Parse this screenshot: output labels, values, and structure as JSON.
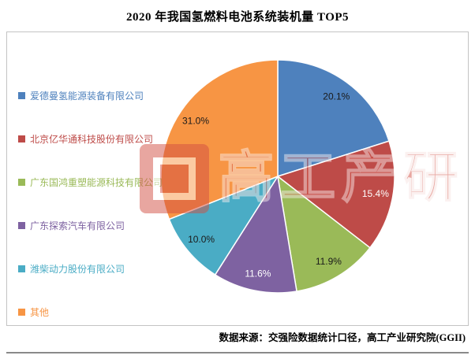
{
  "title": "2020 年我国氢燃料电池系统装机量 TOP5",
  "source_note": "数据来源：交强险数据统计口径，高工产业研究院(GGII)",
  "watermark": {
    "text": "高工产研"
  },
  "chart_data": {
    "type": "pie",
    "title": "2020 年我国氢燃料电池系统装机量 TOP5",
    "unit": "%",
    "categories": [
      "爱德曼氢能源装备有限公司",
      "北京亿华通科技股份有限公司",
      "广东国鸿重塑能源科技有限公司",
      "广东探索汽车有限公司",
      "潍柴动力股份有限公司",
      "其他"
    ],
    "values": [
      20.1,
      15.4,
      11.9,
      11.6,
      10.0,
      31.0
    ],
    "value_labels": [
      "20.1%",
      "15.4%",
      "11.9%",
      "11.6%",
      "10.0%",
      "31.0%"
    ],
    "colors": [
      "#4E81BD",
      "#BE4B48",
      "#9ABA58",
      "#7E62A1",
      "#4AACC5",
      "#F79544"
    ],
    "label_colors": [
      "#1a1a1a",
      "#ffffff",
      "#1a1a1a",
      "#ffffff",
      "#1a1a1a",
      "#1a1a1a"
    ],
    "start_angle_deg": -90,
    "direction": "clockwise",
    "legend_position": "left",
    "source": "数据来源：交强险数据统计口径，高工产业研究院(GGII)"
  }
}
